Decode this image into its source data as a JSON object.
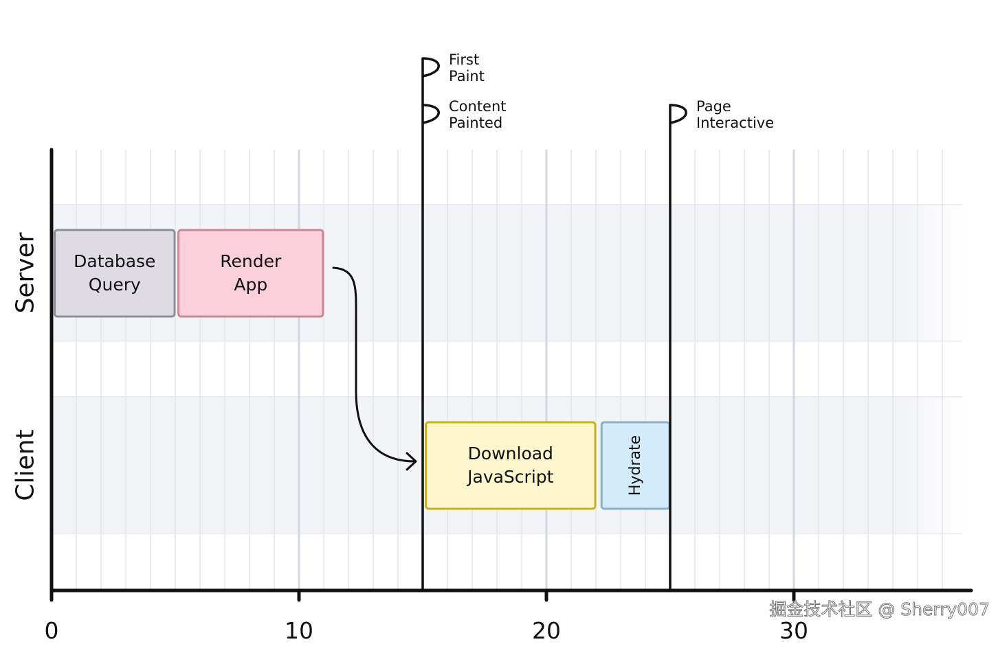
{
  "axis": {
    "ticks": [
      0,
      10,
      20,
      30
    ],
    "min": 0,
    "max": 37
  },
  "rows": [
    {
      "label": "Server",
      "id": "server"
    },
    {
      "label": "Client",
      "id": "client"
    }
  ],
  "tasks": [
    {
      "row": "server",
      "lines": [
        "Database",
        "Query"
      ],
      "start": 0.1,
      "end": 5.0,
      "fill": "#dedbe3",
      "stroke": "#8e8c99",
      "vertical": false
    },
    {
      "row": "server",
      "lines": [
        "Render",
        "App"
      ],
      "start": 5.1,
      "end": 11.0,
      "fill": "#fbd0dc",
      "stroke": "#c98796",
      "vertical": false
    },
    {
      "row": "client",
      "lines": [
        "Download",
        "JavaScript"
      ],
      "start": 15.1,
      "end": 22.0,
      "fill": "#fdf7cd",
      "stroke": "#c8b020",
      "vertical": false
    },
    {
      "row": "client",
      "lines": [
        "Hydrate"
      ],
      "start": 22.2,
      "end": 25.0,
      "fill": "#d3ebfb",
      "stroke": "#8fb0c4",
      "vertical": true
    }
  ],
  "markers": [
    {
      "at": 15,
      "flags": [
        [
          "First",
          "Paint"
        ],
        [
          "Content",
          "Painted"
        ]
      ]
    },
    {
      "at": 25,
      "flags": [
        [
          "Page",
          "Interactive"
        ]
      ]
    }
  ],
  "watermark": "掘金技术社区 @ Sherry007"
}
